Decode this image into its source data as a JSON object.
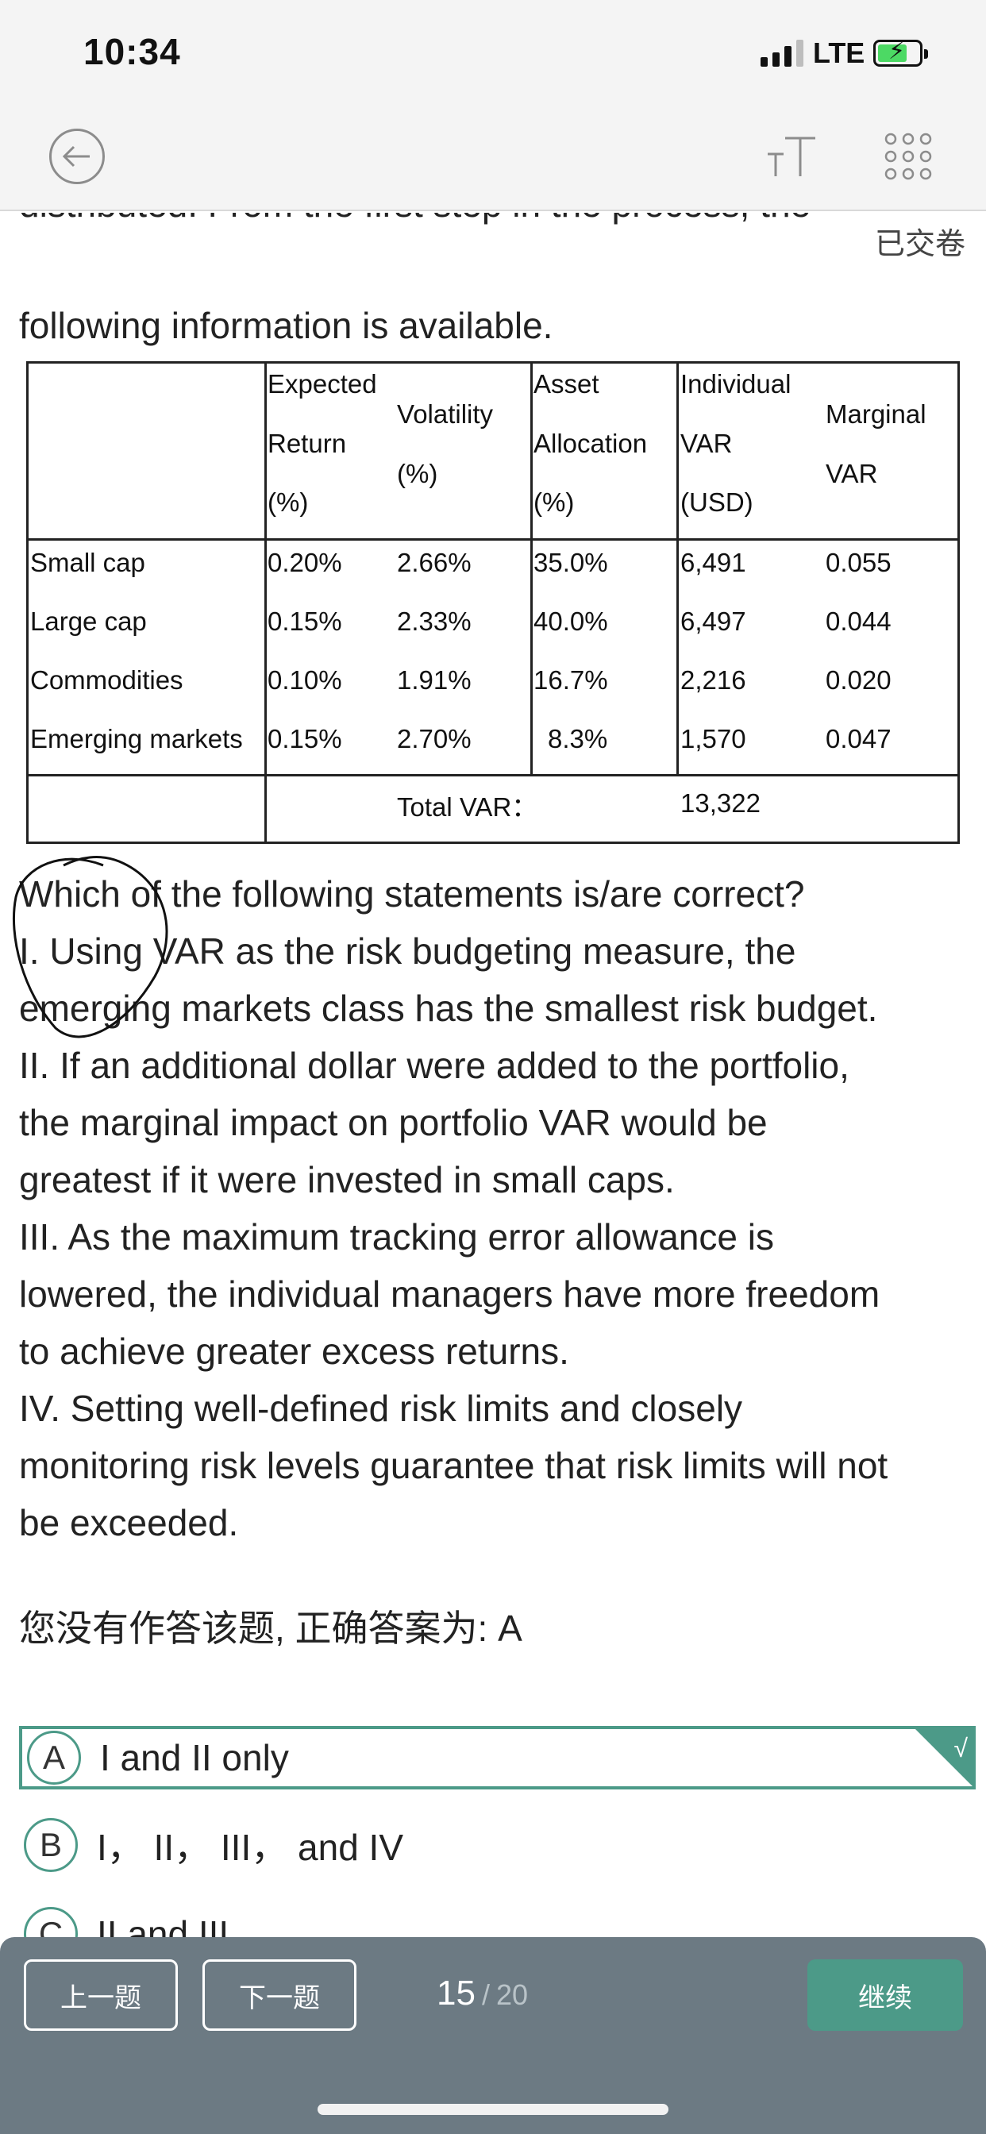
{
  "status": {
    "time": "10:34",
    "network": "LTE"
  },
  "header": {
    "submitted_label": "已交卷",
    "back_icon": "back-circle-arrow-icon",
    "font_icon": "text-size-icon",
    "grid_icon": "grid-menu-icon"
  },
  "content": {
    "cut_line": "distributed. From the first step in the process, the",
    "intro_line": "following information is available."
  },
  "table": {
    "headers": {
      "expected": [
        "Expected",
        "Return",
        "(%)"
      ],
      "volatility": [
        "Volatility",
        "(%)"
      ],
      "allocation": [
        "Asset",
        "Allocation",
        "(%)"
      ],
      "individual": [
        "Individual",
        "VAR",
        "(USD)"
      ],
      "marginal": [
        "Marginal",
        "VAR"
      ]
    },
    "rows": [
      {
        "name": "Small cap",
        "ret": "0.20%",
        "vol": "2.66%",
        "alloc": "35.0%",
        "ivar": "6,491",
        "mvar": "0.055"
      },
      {
        "name": "Large cap",
        "ret": "0.15%",
        "vol": "2.33%",
        "alloc": "40.0%",
        "ivar": "6,497",
        "mvar": "0.044"
      },
      {
        "name": "Commodities",
        "ret": "0.10%",
        "vol": "1.91%",
        "alloc": "16.7%",
        "ivar": "2,216",
        "mvar": "0.020"
      },
      {
        "name": "Emerging markets",
        "ret": "0.15%",
        "vol": "2.70%",
        "alloc": "8.3%",
        "ivar": "1,570",
        "mvar": "0.047"
      }
    ],
    "total_label": "Total VAR：",
    "total_value": "13,322"
  },
  "question": {
    "lines": [
      "Which of the following statements is/are correct?",
      "I. Using VAR as the risk budgeting measure, the",
      "emerging markets class has the smallest risk budget.",
      "II. If an additional dollar were added to the portfolio,",
      "the marginal impact on portfolio VAR would be",
      "greatest if it were invested in small caps.",
      "III. As the maximum tracking error allowance is",
      "lowered, the individual managers have more freedom",
      "to achieve greater excess returns.",
      "IV. Setting well-defined risk limits and closely",
      "monitoring risk levels guarantee that risk limits will not",
      "be exceeded."
    ]
  },
  "answer_note": "您没有作答该题, 正确答案为: A",
  "options": [
    {
      "letter": "A",
      "text": "I and II only",
      "correct_mark": "√"
    },
    {
      "letter": "B",
      "text": "I，  II，  III，  and IV"
    },
    {
      "letter": "C",
      "text": "II and III"
    }
  ],
  "footer": {
    "prev_label": "上一题",
    "next_label": "下一题",
    "current": "15",
    "separator": "/",
    "total": "20",
    "continue_label": "继续"
  },
  "colors": {
    "accent": "#4c9a88",
    "footer_bg": "#6c7a83"
  }
}
